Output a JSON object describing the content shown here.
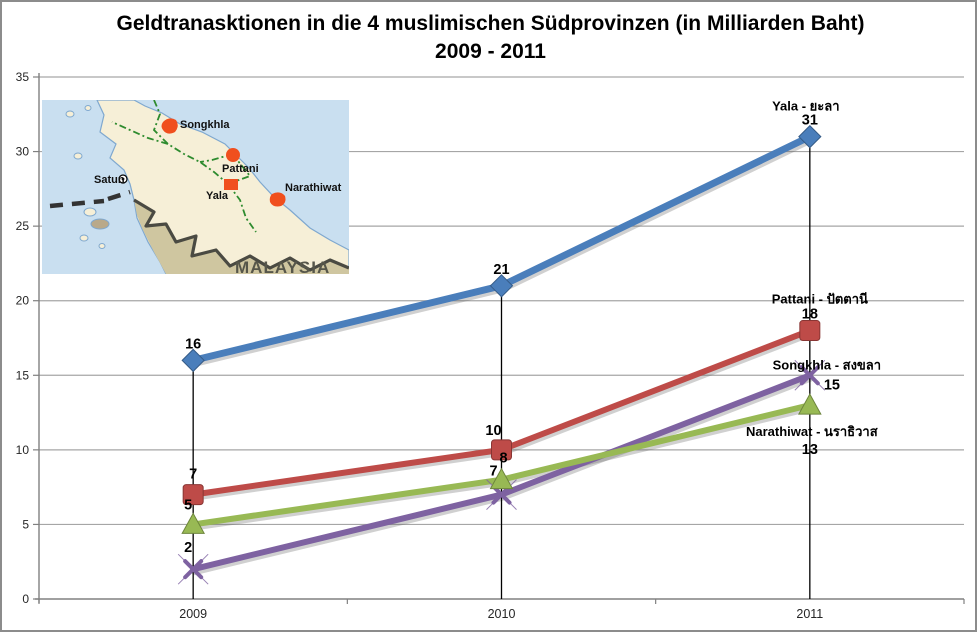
{
  "title": {
    "line1": "Geldtranasktionen in die 4 muslimischen Südprovinzen (in Milliarden Baht)",
    "line2": "2009 - 2011"
  },
  "map": {
    "labels": {
      "songkhla": "Songkhla",
      "pattani": "Pattani",
      "yala": "Yala",
      "narathiwat": "Narathiwat",
      "satun": "Satun",
      "malaysia": "MALAYSIA"
    },
    "marker_color": "#f04f1e"
  },
  "chart_data": {
    "type": "line",
    "title": "Geldtranasktionen in die 4 muslimischen Südprovinzen (in Milliarden Baht) 2009 - 2011",
    "categories": [
      "2009",
      "2010",
      "2011"
    ],
    "series": [
      {
        "name": "Yala - ยะลา",
        "color": "#4a7ebb",
        "marker": "diamond",
        "values": [
          16,
          21,
          31
        ]
      },
      {
        "name": "Pattani - ปัตตานี",
        "color": "#be4b48",
        "marker": "square",
        "values": [
          7,
          10,
          18
        ]
      },
      {
        "name": "Songkhla - สงขลา",
        "color": "#7e62a1",
        "marker": "x",
        "values": [
          2,
          7,
          15
        ]
      },
      {
        "name": "Narathiwat - นราธิวาส",
        "color": "#98b954",
        "marker": "triangle",
        "values": [
          5,
          8,
          13
        ]
      }
    ],
    "ylim": [
      0,
      35
    ],
    "yticks": [
      0,
      5,
      10,
      15,
      20,
      25,
      30,
      35
    ],
    "xlabel": "",
    "ylabel": "",
    "grid": true,
    "drop_lines": true,
    "data_labels": true,
    "legend_position": "series names annotated at line ends (2011)",
    "colors": {
      "gridline": "#a6a6a6",
      "axis": "#808080",
      "drop_line": "#000000",
      "label_text": "#000000"
    }
  }
}
